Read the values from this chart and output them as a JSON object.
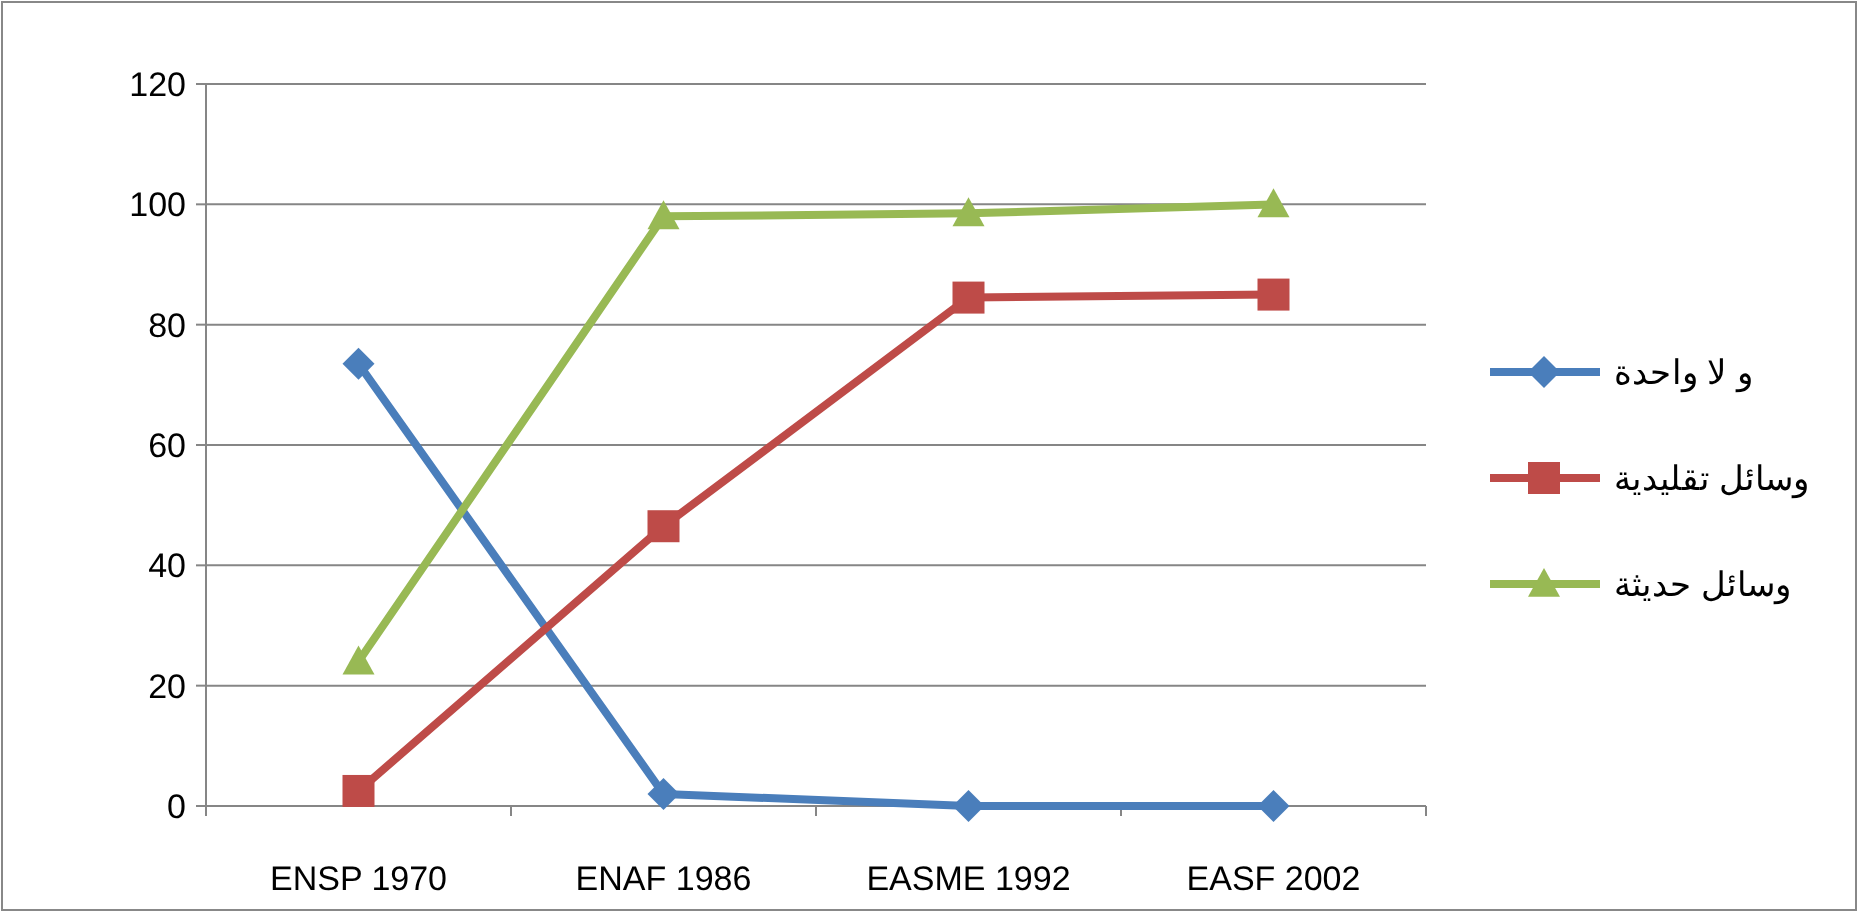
{
  "chart_data": {
    "type": "line",
    "categories": [
      "ENSP 1970",
      "ENAF 1986",
      "EASME 1992",
      "EASF 2002"
    ],
    "series": [
      {
        "name": "و لا واحدة",
        "color": "#4a7ebb",
        "marker": "diamond",
        "values": [
          73.5,
          2,
          0,
          0
        ]
      },
      {
        "name": "وسائل تقليدية",
        "color": "#be4b48",
        "marker": "square",
        "values": [
          2.5,
          46.5,
          84.5,
          85
        ]
      },
      {
        "name": "وسائل حديثة",
        "color": "#98b954",
        "marker": "triangle",
        "values": [
          24,
          98,
          98.5,
          100
        ]
      }
    ],
    "ylim": [
      0,
      120
    ],
    "yticks": [
      0,
      20,
      40,
      60,
      80,
      100,
      120
    ],
    "grid": "y",
    "legend": "right"
  }
}
